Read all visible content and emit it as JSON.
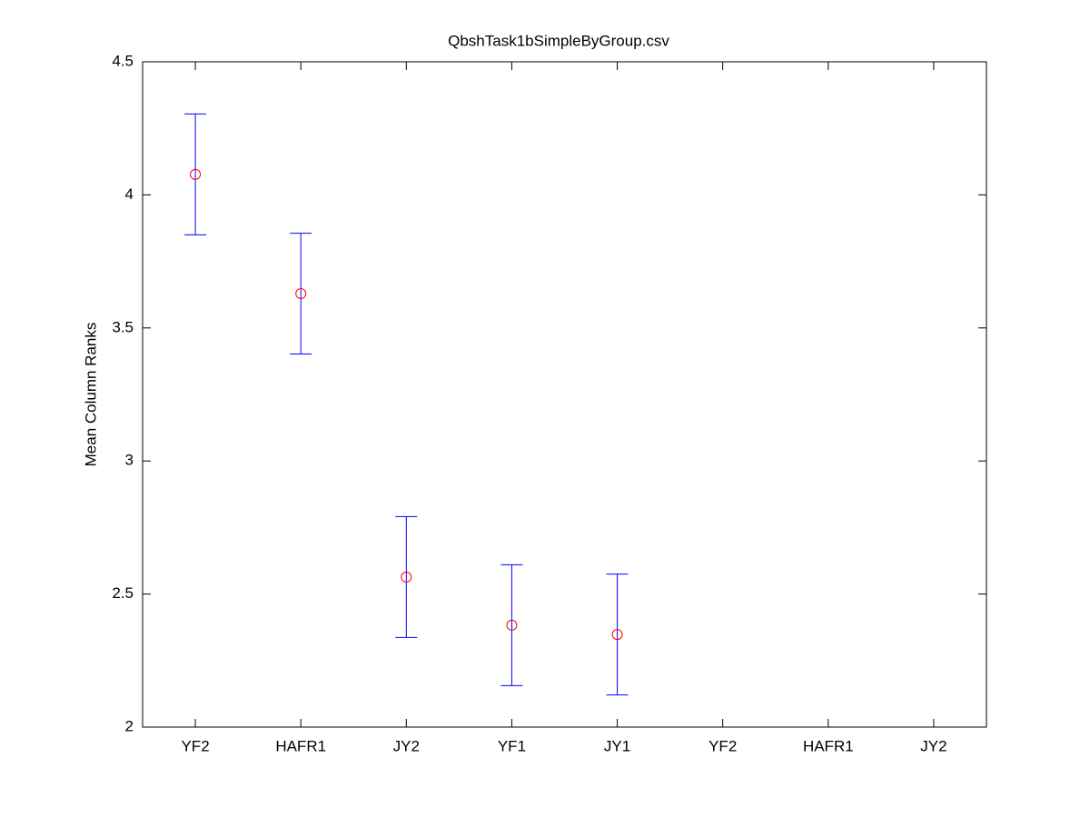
{
  "chart_data": {
    "type": "errorbar",
    "title": "QbshTask1bSimpleByGroup.csv",
    "y_label": "Mean Column Ranks",
    "categories": [
      "YF2",
      "HAFR1",
      "JY2",
      "YF1",
      "JY1",
      "YF2",
      "HAFR1",
      "JY2"
    ],
    "values": [
      4.077,
      3.629,
      2.564,
      2.383,
      2.348,
      null,
      null,
      null
    ],
    "errors": [
      0.227,
      0.227,
      0.227,
      0.227,
      0.227,
      null,
      null,
      null
    ],
    "marker_color": "#ff0000",
    "errorbar_color": "#0000ff",
    "ylim": [
      2,
      4.5
    ],
    "yticks": [
      2,
      2.5,
      3,
      3.5,
      4,
      4.5
    ],
    "grid": false
  }
}
